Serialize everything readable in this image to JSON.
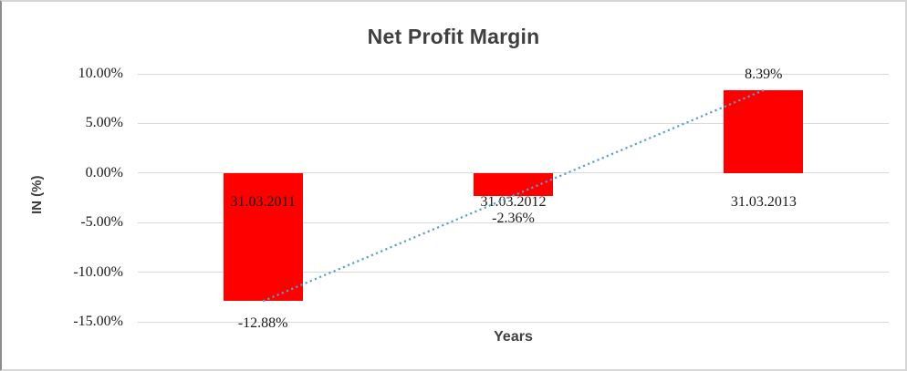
{
  "chart_data": {
    "type": "bar",
    "title": "Net Profit Margin",
    "xlabel": "Years",
    "ylabel": "IN (%)",
    "categories": [
      "31.03.2011",
      "31.03.2012",
      "31.03.2013"
    ],
    "values": [
      -12.88,
      -2.36,
      8.39
    ],
    "data_labels": [
      "-12.88%",
      "-2.36%",
      "8.39%"
    ],
    "ylim": [
      -15,
      10
    ],
    "ytick_step": 5,
    "ytick_labels": [
      "10.00%",
      "5.00%",
      "0.00%",
      "-5.00%",
      "-10.00%",
      "-15.00%"
    ],
    "grid": true,
    "legend": "none",
    "bar_color": "#FF0000",
    "gridline_color": "#D9D9D9",
    "title_color": "#3F3F3F",
    "label_color": "#1A1A1A",
    "trendline": {
      "type": "linear",
      "style": "dotted",
      "color": "#5B9BD5"
    }
  }
}
